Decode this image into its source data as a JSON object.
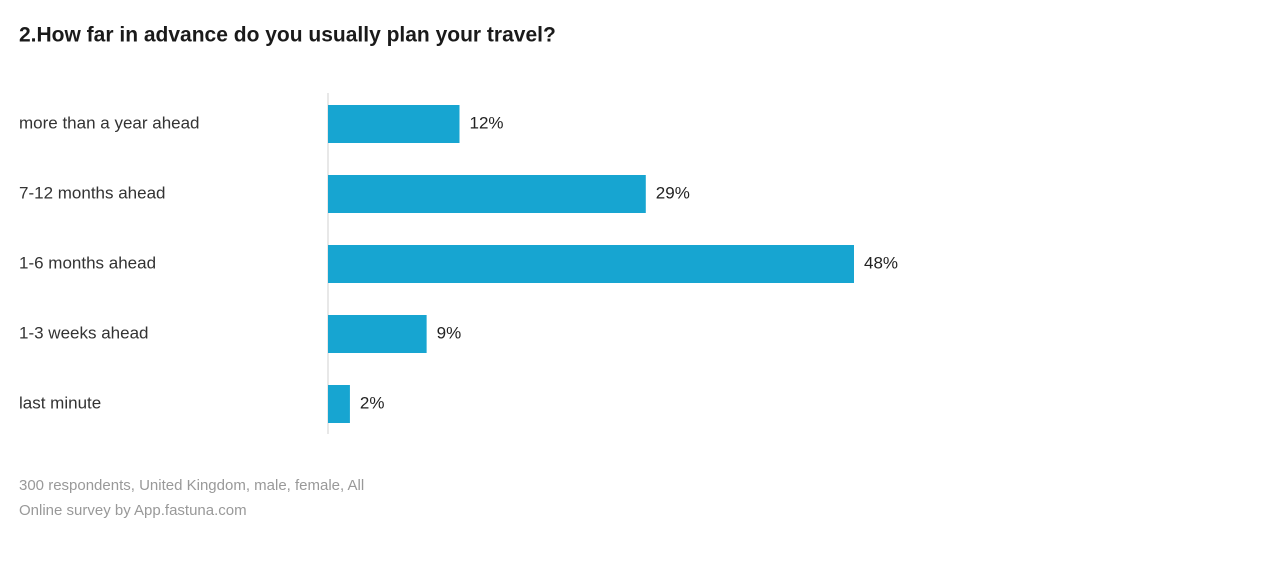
{
  "chart_data": {
    "type": "bar",
    "orientation": "horizontal",
    "title": "2.How far in advance do you usually plan your travel?",
    "categories": [
      "more than a year ahead",
      "7-12 months ahead",
      "1-6 months ahead",
      "1-3 weeks ahead",
      "last minute"
    ],
    "values": [
      12,
      29,
      48,
      9,
      2
    ],
    "value_labels": [
      "12%",
      "29%",
      "48%",
      "9%",
      "2%"
    ],
    "color": "#17a5d1",
    "notes": [
      "300 respondents, United Kingdom, male, female, All",
      "Online survey by App.fastuna.com"
    ]
  }
}
